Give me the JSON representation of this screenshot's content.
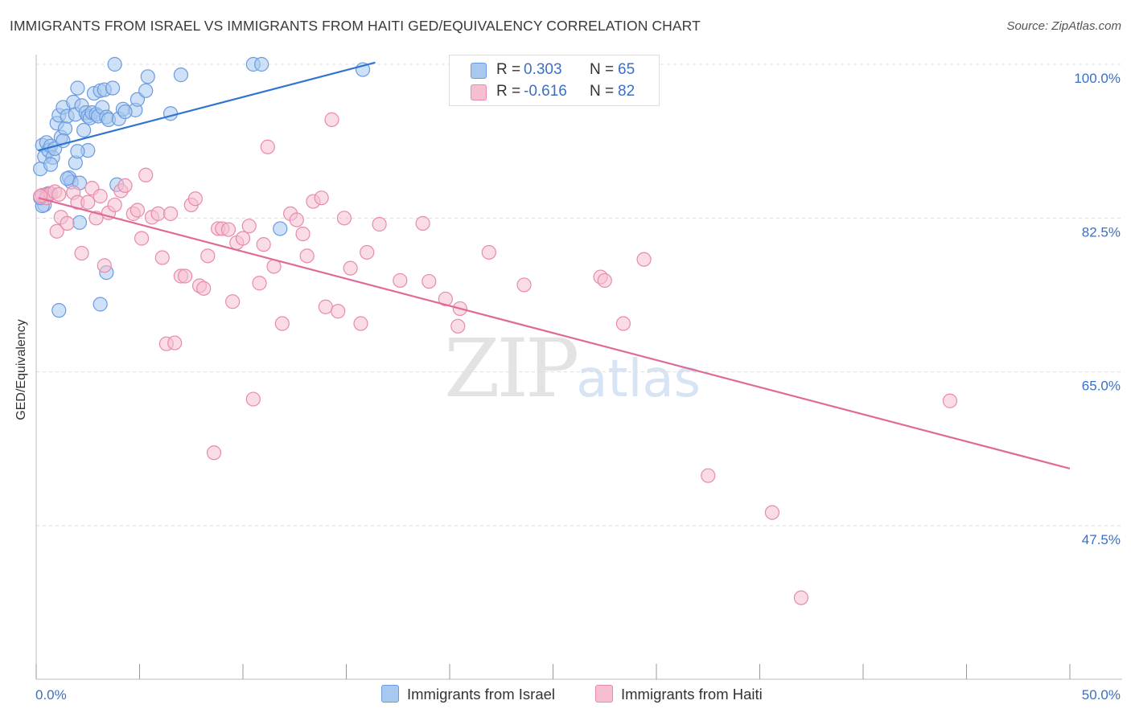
{
  "title": "IMMIGRANTS FROM ISRAEL VS IMMIGRANTS FROM HAITI GED/EQUIVALENCY CORRELATION CHART",
  "source": "Source: ZipAtlas.com",
  "watermark": {
    "zip": "ZIP",
    "atlas": "atlas"
  },
  "legend": {
    "israel": {
      "r_label": "R =",
      "r_value": "0.303",
      "n_label": "N =",
      "n_value": "65"
    },
    "haiti": {
      "r_label": "R =",
      "r_value": "-0.616",
      "n_label": "N =",
      "n_value": "82"
    }
  },
  "colors": {
    "israel_fill": "#a8c8f0",
    "israel_stroke": "#6a9be0",
    "israel_line": "#2f74d0",
    "haiti_fill": "#f6bfd0",
    "haiti_stroke": "#e98aab",
    "haiti_line": "#e06a97",
    "tick_label": "#3b6fc4"
  },
  "chart_data": {
    "type": "scatter",
    "title": "IMMIGRANTS FROM ISRAEL VS IMMIGRANTS FROM HAITI GED/EQUIVALENCY CORRELATION CHART",
    "xlabel": "",
    "ylabel": "GED/Equivalency",
    "xlim": [
      0,
      50
    ],
    "ylim": [
      32,
      102
    ],
    "x_tick_labels": [
      "0.0%",
      "50.0%"
    ],
    "y_ticks": [
      47.5,
      65.0,
      82.5,
      100.0
    ],
    "y_tick_labels": [
      "47.5%",
      "65.0%",
      "82.5%",
      "100.0%"
    ],
    "grid": true,
    "series": [
      {
        "name": "Immigrants from Israel",
        "trend": {
          "x": [
            0.1,
            16.4
          ],
          "y": [
            90.2,
            100.2
          ]
        },
        "points": [
          [
            0.2,
            88.1
          ],
          [
            0.3,
            90.8
          ],
          [
            0.4,
            84.0
          ],
          [
            0.4,
            89.5
          ],
          [
            0.5,
            91.1
          ],
          [
            0.6,
            90.2
          ],
          [
            0.7,
            90.7
          ],
          [
            0.8,
            89.4
          ],
          [
            0.9,
            90.4
          ],
          [
            1.0,
            93.3
          ],
          [
            1.1,
            94.2
          ],
          [
            1.2,
            91.7
          ],
          [
            1.3,
            95.1
          ],
          [
            1.4,
            92.7
          ],
          [
            1.5,
            94.1
          ],
          [
            1.6,
            87.1
          ],
          [
            1.7,
            86.6
          ],
          [
            1.8,
            95.7
          ],
          [
            1.9,
            94.3
          ],
          [
            2.0,
            97.3
          ],
          [
            2.1,
            86.5
          ],
          [
            2.2,
            95.3
          ],
          [
            2.3,
            92.5
          ],
          [
            2.4,
            94.5
          ],
          [
            2.5,
            94.1
          ],
          [
            2.6,
            93.9
          ],
          [
            2.7,
            94.5
          ],
          [
            2.8,
            96.7
          ],
          [
            2.9,
            94.3
          ],
          [
            3.0,
            94.1
          ],
          [
            3.1,
            97.0
          ],
          [
            3.2,
            95.1
          ],
          [
            3.3,
            97.1
          ],
          [
            3.4,
            94.0
          ],
          [
            3.5,
            93.7
          ],
          [
            3.7,
            97.3
          ],
          [
            3.9,
            86.3
          ],
          [
            4.0,
            93.8
          ],
          [
            4.2,
            94.9
          ],
          [
            4.8,
            94.8
          ],
          [
            4.9,
            96.0
          ],
          [
            5.3,
            97.0
          ],
          [
            5.4,
            98.6
          ],
          [
            6.5,
            94.4
          ],
          [
            7.0,
            98.8
          ],
          [
            3.8,
            100.0
          ],
          [
            10.5,
            100.0
          ],
          [
            10.9,
            100.0
          ],
          [
            15.8,
            99.4
          ],
          [
            0.3,
            83.9
          ],
          [
            0.5,
            85.2
          ],
          [
            0.7,
            88.6
          ],
          [
            1.1,
            72.0
          ],
          [
            1.5,
            87.0
          ],
          [
            1.9,
            88.8
          ],
          [
            2.1,
            82.0
          ],
          [
            2.5,
            90.2
          ],
          [
            3.1,
            72.7
          ],
          [
            3.4,
            76.3
          ],
          [
            11.8,
            81.3
          ],
          [
            0.2,
            84.8
          ],
          [
            0.6,
            85.3
          ],
          [
            1.3,
            91.3
          ],
          [
            2.0,
            90.1
          ],
          [
            4.3,
            94.6
          ]
        ]
      },
      {
        "name": "Immigrants from Haiti",
        "trend": {
          "x": [
            0.1,
            50.0
          ],
          "y": [
            84.8,
            54.0
          ]
        },
        "points": [
          [
            0.3,
            85.1
          ],
          [
            0.5,
            84.8
          ],
          [
            0.7,
            85.3
          ],
          [
            0.9,
            85.5
          ],
          [
            1.0,
            81.0
          ],
          [
            1.2,
            82.6
          ],
          [
            1.5,
            81.9
          ],
          [
            1.8,
            85.4
          ],
          [
            2.0,
            84.3
          ],
          [
            2.2,
            78.5
          ],
          [
            2.5,
            84.3
          ],
          [
            2.7,
            85.9
          ],
          [
            2.9,
            82.5
          ],
          [
            3.1,
            85.0
          ],
          [
            3.3,
            77.1
          ],
          [
            3.5,
            83.1
          ],
          [
            3.8,
            84.0
          ],
          [
            4.1,
            85.6
          ],
          [
            4.3,
            86.2
          ],
          [
            4.7,
            83.0
          ],
          [
            4.9,
            83.4
          ],
          [
            5.1,
            80.2
          ],
          [
            5.3,
            87.4
          ],
          [
            5.6,
            82.6
          ],
          [
            5.9,
            83.0
          ],
          [
            6.1,
            78.0
          ],
          [
            6.3,
            68.2
          ],
          [
            6.5,
            83.0
          ],
          [
            6.7,
            68.3
          ],
          [
            7.0,
            75.9
          ],
          [
            7.2,
            75.9
          ],
          [
            7.5,
            84.0
          ],
          [
            7.7,
            84.7
          ],
          [
            7.9,
            74.8
          ],
          [
            8.1,
            74.5
          ],
          [
            8.3,
            78.2
          ],
          [
            8.6,
            55.8
          ],
          [
            8.8,
            81.3
          ],
          [
            9.0,
            81.3
          ],
          [
            9.3,
            81.2
          ],
          [
            9.5,
            73.0
          ],
          [
            9.7,
            79.7
          ],
          [
            10.0,
            80.2
          ],
          [
            10.3,
            81.6
          ],
          [
            10.5,
            61.9
          ],
          [
            10.8,
            75.1
          ],
          [
            11.0,
            79.5
          ],
          [
            11.2,
            90.6
          ],
          [
            11.5,
            77.0
          ],
          [
            11.9,
            70.5
          ],
          [
            12.3,
            83.0
          ],
          [
            12.6,
            82.3
          ],
          [
            12.9,
            80.7
          ],
          [
            13.1,
            78.2
          ],
          [
            13.4,
            84.4
          ],
          [
            13.8,
            84.8
          ],
          [
            14.0,
            72.4
          ],
          [
            14.3,
            93.7
          ],
          [
            14.6,
            71.9
          ],
          [
            14.9,
            82.5
          ],
          [
            15.2,
            76.8
          ],
          [
            15.7,
            70.5
          ],
          [
            16.0,
            78.6
          ],
          [
            16.6,
            81.8
          ],
          [
            17.6,
            75.4
          ],
          [
            18.7,
            81.9
          ],
          [
            19.0,
            75.3
          ],
          [
            19.8,
            73.3
          ],
          [
            20.4,
            70.2
          ],
          [
            20.5,
            72.2
          ],
          [
            21.9,
            78.6
          ],
          [
            23.6,
            74.9
          ],
          [
            27.3,
            75.8
          ],
          [
            27.5,
            75.4
          ],
          [
            28.4,
            70.5
          ],
          [
            29.4,
            77.8
          ],
          [
            32.5,
            53.2
          ],
          [
            35.6,
            49.0
          ],
          [
            37.0,
            39.3
          ],
          [
            44.2,
            61.7
          ],
          [
            0.2,
            85.0
          ],
          [
            1.1,
            85.2
          ]
        ]
      }
    ]
  },
  "bottom_legend": {
    "israel": "Immigrants from Israel",
    "haiti": "Immigrants from Haiti"
  }
}
